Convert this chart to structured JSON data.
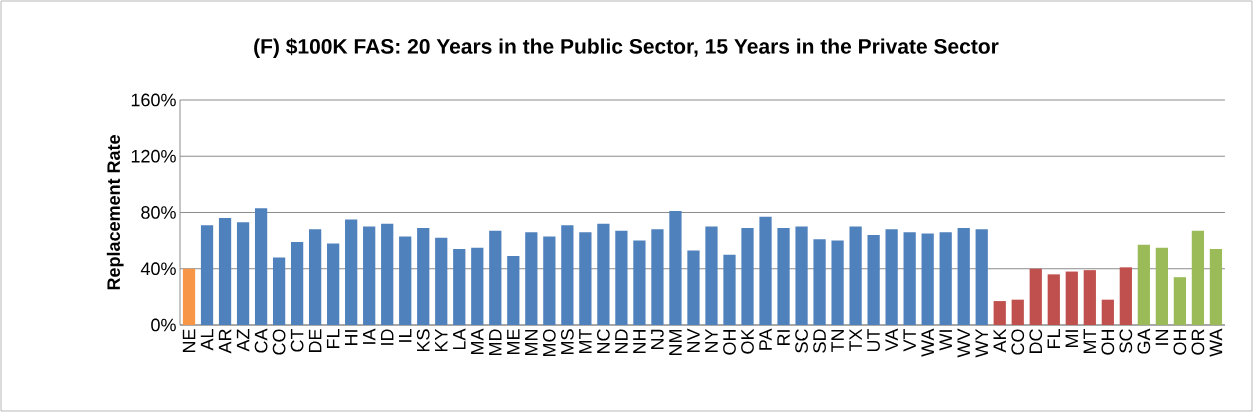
{
  "chart_data": {
    "type": "bar",
    "title": "(F) $100K FAS: 20 Years in the Public Sector, 15 Years in the Private Sector",
    "ylabel": "Replacement Rate",
    "categories": [
      "NE",
      "AL",
      "AR",
      "AZ",
      "CA",
      "CO",
      "CT",
      "DE",
      "FL",
      "HI",
      "IA",
      "ID",
      "IL",
      "KS",
      "KY",
      "LA",
      "MA",
      "MD",
      "ME",
      "MN",
      "MO",
      "MS",
      "MT",
      "NC",
      "ND",
      "NH",
      "NJ",
      "NM",
      "NV",
      "NY",
      "OH",
      "OK",
      "PA",
      "RI",
      "SC",
      "SD",
      "TN",
      "TX",
      "UT",
      "VA",
      "VT",
      "WA",
      "WI",
      "WV",
      "WY",
      "AK",
      "CO",
      "DC",
      "FL",
      "MI",
      "MT",
      "OH",
      "SC",
      "GA",
      "IN",
      "OH",
      "OR",
      "WA"
    ],
    "values": [
      40,
      71,
      76,
      73,
      83,
      48,
      59,
      68,
      58,
      75,
      70,
      72,
      63,
      69,
      62,
      54,
      55,
      67,
      49,
      66,
      63,
      71,
      66,
      72,
      67,
      60,
      68,
      81,
      53,
      70,
      50,
      69,
      77,
      69,
      70,
      61,
      60,
      70,
      64,
      68,
      66,
      65,
      66,
      69,
      68,
      17,
      18,
      40,
      36,
      38,
      39,
      18,
      41,
      57,
      55,
      34,
      67,
      54
    ],
    "colors": [
      "#f79646",
      "#4f81bd",
      "#4f81bd",
      "#4f81bd",
      "#4f81bd",
      "#4f81bd",
      "#4f81bd",
      "#4f81bd",
      "#4f81bd",
      "#4f81bd",
      "#4f81bd",
      "#4f81bd",
      "#4f81bd",
      "#4f81bd",
      "#4f81bd",
      "#4f81bd",
      "#4f81bd",
      "#4f81bd",
      "#4f81bd",
      "#4f81bd",
      "#4f81bd",
      "#4f81bd",
      "#4f81bd",
      "#4f81bd",
      "#4f81bd",
      "#4f81bd",
      "#4f81bd",
      "#4f81bd",
      "#4f81bd",
      "#4f81bd",
      "#4f81bd",
      "#4f81bd",
      "#4f81bd",
      "#4f81bd",
      "#4f81bd",
      "#4f81bd",
      "#4f81bd",
      "#4f81bd",
      "#4f81bd",
      "#4f81bd",
      "#4f81bd",
      "#4f81bd",
      "#4f81bd",
      "#4f81bd",
      "#4f81bd",
      "#c0504d",
      "#c0504d",
      "#c0504d",
      "#c0504d",
      "#c0504d",
      "#c0504d",
      "#c0504d",
      "#c0504d",
      "#9bbb59",
      "#9bbb59",
      "#9bbb59",
      "#9bbb59",
      "#9bbb59"
    ],
    "ylim": [
      0,
      160
    ],
    "yticks": [
      {
        "value": 0,
        "label": "0%"
      },
      {
        "value": 40,
        "label": "40%"
      },
      {
        "value": 80,
        "label": "80%"
      },
      {
        "value": 120,
        "label": "120%"
      },
      {
        "value": 160,
        "label": "160%"
      }
    ],
    "grid": "y"
  }
}
